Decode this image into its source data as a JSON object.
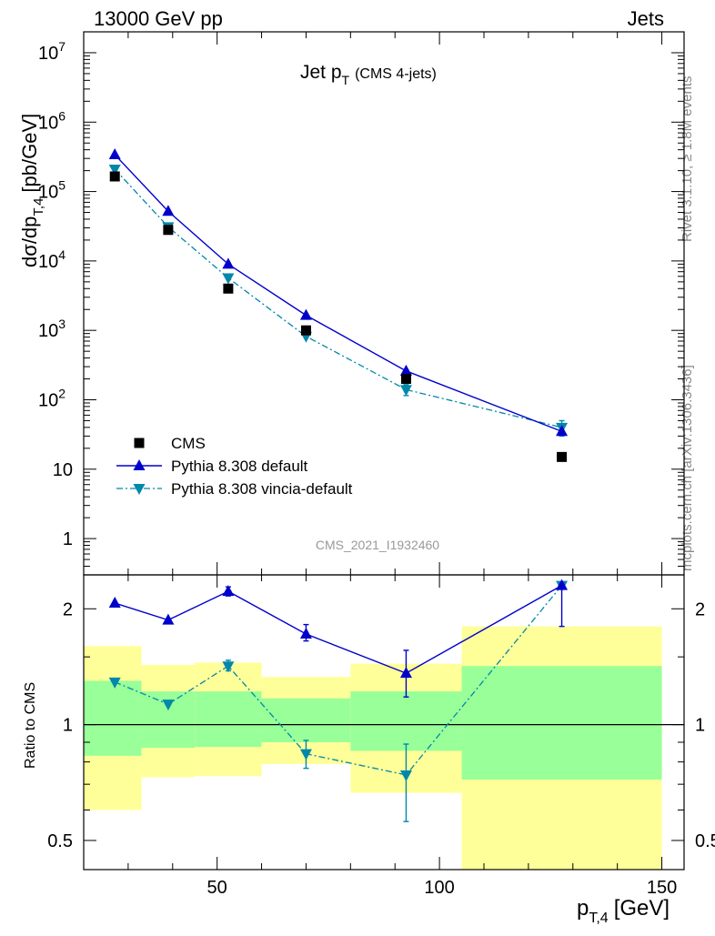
{
  "header": {
    "left": "13000 GeV pp",
    "right": "Jets"
  },
  "side_labels": {
    "rivet": "Rivet 3.1.10, ≥ 1.8M events",
    "mcplots": "mcplots.cern.ch [arXiv:1306.3436]"
  },
  "chart_data": [
    {
      "type": "line",
      "title_main": "Jet p",
      "title_sub": "T",
      "title_note": "(CMS 4-jets)",
      "watermark": "CMS_2021_I1932460",
      "ylabel": "dσ/dp",
      "ylabel_sub": "T,4",
      "ylabel_unit": "[pb/GeV]",
      "yscale": "log",
      "xlim": [
        20,
        155
      ],
      "ylim": [
        0.3,
        20000000
      ],
      "ytick_labels": [
        "1",
        "10",
        "10^2",
        "10^3",
        "10^4",
        "10^5",
        "10^6",
        "10^7"
      ],
      "legend": [
        "CMS",
        "Pythia 8.308 default",
        "Pythia 8.308 vincia-default"
      ],
      "legend_position": "lower-left",
      "x": [
        27,
        39,
        52.5,
        70,
        92.5,
        127.5
      ],
      "series": [
        {
          "name": "CMS",
          "marker": "square",
          "color": "#000000",
          "values": [
            165000,
            28000,
            4000,
            1000,
            200,
            15
          ]
        },
        {
          "name": "Pythia 8.308 default",
          "marker": "triangle-up",
          "color": "#0000cc",
          "values": [
            340000,
            52000,
            9000,
            1650,
            260,
            35
          ]
        },
        {
          "name": "Pythia 8.308 vincia-default",
          "marker": "triangle-down",
          "color": "#0088aa",
          "values": [
            210000,
            31000,
            5700,
            820,
            140,
            40
          ],
          "errors": [
            0,
            0,
            0,
            0,
            25,
            10
          ]
        }
      ]
    },
    {
      "type": "line",
      "ylabel": "Ratio to CMS",
      "xlabel": "p",
      "xlabel_sub": "T,4",
      "xlabel_unit": "[GeV]",
      "yscale": "log",
      "xlim": [
        20,
        155
      ],
      "ylim": [
        0.42,
        2.45
      ],
      "xtick_labels": [
        "50",
        "100",
        "150"
      ],
      "ytick_labels": [
        "0.5",
        "1",
        "2"
      ],
      "reference_line": 1,
      "bins": [
        20,
        33,
        45,
        60,
        80,
        105,
        150
      ],
      "band_inner": {
        "low": [
          0.83,
          0.87,
          0.875,
          0.9,
          0.855,
          0.72
        ],
        "high": [
          1.3,
          1.22,
          1.22,
          1.17,
          1.22,
          1.42
        ]
      },
      "band_outer": {
        "low": [
          0.6,
          0.73,
          0.735,
          0.79,
          0.665,
          0.35
        ],
        "high": [
          1.6,
          1.43,
          1.45,
          1.33,
          1.44,
          1.8
        ]
      },
      "x": [
        27,
        39,
        52.5,
        70,
        92.5,
        127.5
      ],
      "series": [
        {
          "name": "Pythia 8.308 default",
          "color": "#0000cc",
          "values": [
            2.07,
            1.87,
            2.22,
            1.72,
            1.36,
            2.3
          ],
          "err_low": [
            0,
            0,
            0.06,
            0.07,
            0.18,
            0.5
          ],
          "err_high": [
            0,
            0,
            0.06,
            0.1,
            0.2,
            0
          ]
        },
        {
          "name": "Pythia 8.308 vincia-default",
          "color": "#0088aa",
          "values": [
            1.29,
            1.13,
            1.42,
            0.84,
            0.74,
            2.3
          ],
          "err_low": [
            0,
            0,
            0.04,
            0.07,
            0.18,
            0
          ],
          "err_high": [
            0,
            0,
            0.05,
            0.07,
            0.15,
            0
          ]
        }
      ]
    }
  ]
}
